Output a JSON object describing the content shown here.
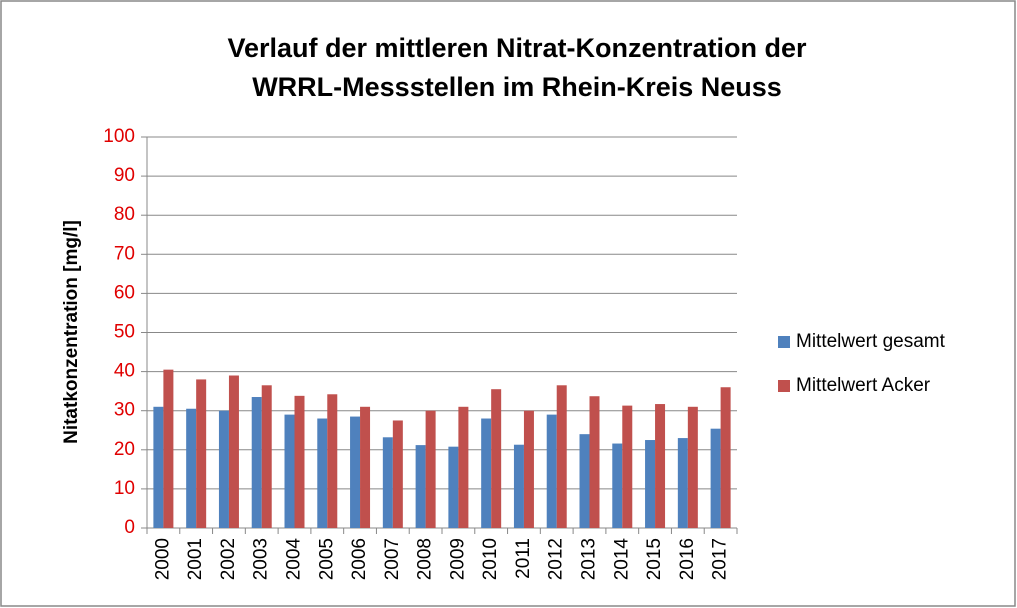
{
  "chart_data": {
    "type": "bar",
    "title": [
      "Verlauf der mittleren Nitrat-Konzentration der",
      "WRRL-Messstellen im Rhein-Kreis Neuss"
    ],
    "y_label": "Nitatkonzentration [mg/l]",
    "categories": [
      "2000",
      "2001",
      "2002",
      "2003",
      "2004",
      "2005",
      "2006",
      "2007",
      "2008",
      "2009",
      "2010",
      "2011",
      "2012",
      "2013",
      "2014",
      "2015",
      "2016",
      "2017"
    ],
    "series": [
      {
        "name": "Mittelwert gesamt",
        "color": "#4f81bd",
        "values": [
          31,
          30.5,
          30,
          33.5,
          29,
          28,
          28.5,
          23.2,
          21.2,
          20.8,
          28,
          21.3,
          29,
          24,
          21.6,
          22.5,
          23,
          25.4
        ]
      },
      {
        "name": "Mittelwert Acker",
        "color": "#c0504d",
        "values": [
          40.5,
          38,
          39,
          36.5,
          33.8,
          34.2,
          31,
          27.5,
          30,
          31,
          35.5,
          30,
          36.5,
          33.7,
          31.3,
          31.7,
          31,
          36
        ]
      }
    ],
    "ylim": [
      0,
      100
    ],
    "yticks": [
      0,
      10,
      20,
      30,
      40,
      50,
      60,
      70,
      80,
      90,
      100
    ],
    "ytick_color": "#e00000",
    "grid": true,
    "legend": "right"
  }
}
